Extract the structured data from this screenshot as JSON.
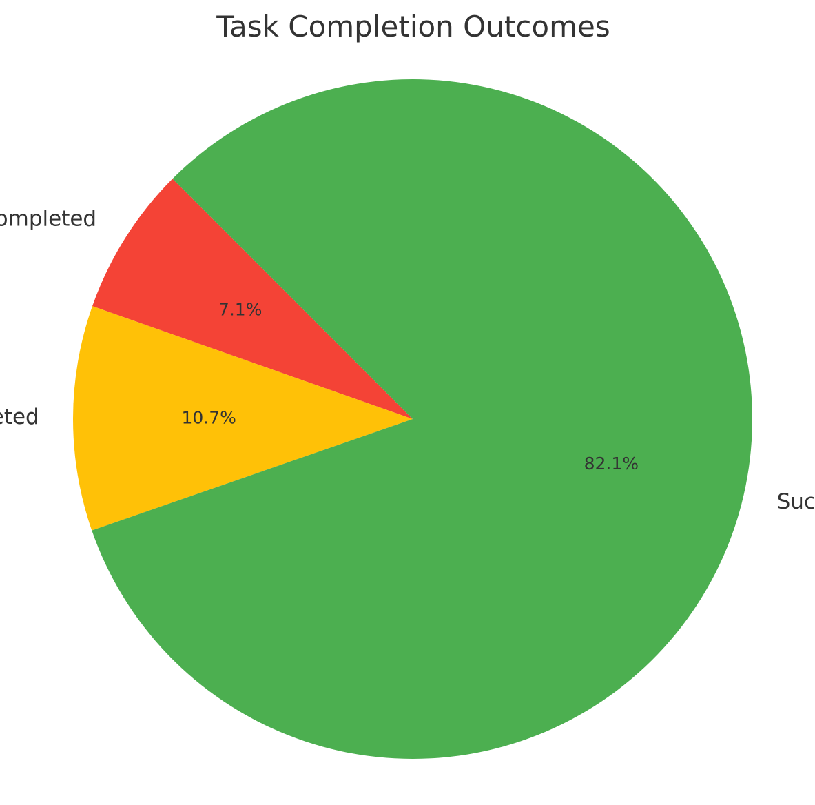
{
  "chart_data": {
    "type": "pie",
    "title": "Task Completion Outcomes",
    "start_angle_deg": 135,
    "direction": "counterclockwise",
    "slices": [
      {
        "label": "Not Completed",
        "value": 7.1,
        "pct_label": "7.1%",
        "color": "#F44336"
      },
      {
        "label": "Partially Completed",
        "value": 10.7,
        "pct_label": "10.7%",
        "color": "#FFC107"
      },
      {
        "label": "Successfully Completed",
        "value": 82.1,
        "pct_label": "82.1%",
        "color": "#4CAF50"
      }
    ]
  }
}
